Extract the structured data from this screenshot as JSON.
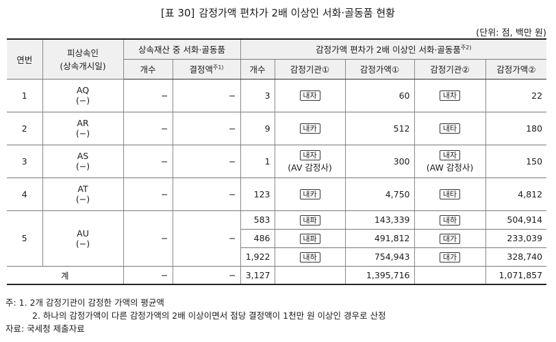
{
  "title": {
    "num": "[표 30]",
    "text": "감정가액 편차가 2배 이상인 서화·골동품 현황"
  },
  "unit": "(단위: 점, 백만 원)",
  "header": {
    "year": "연번",
    "decedent": "피상속인",
    "decedent_sub": "(상속개시일)",
    "group_a": "상속재산 중 서화·골동품",
    "group_b": "감정가액 편차가 2배 이상인 서화·골동품",
    "group_b_note": "주2)",
    "count": "개수",
    "decided": "결정액",
    "decided_note": "주1)",
    "count_b": "개수",
    "agency1": "감정기관①",
    "value1": "감정가액①",
    "agency2": "감정기관②",
    "value2": "감정가액②"
  },
  "rows": [
    {
      "no": "1",
      "name": "AQ",
      "date": "(−)",
      "cnt": "−",
      "dec": "−",
      "items": [
        {
          "n": "3",
          "a1": "내자",
          "a1s": "",
          "v1": "60",
          "a2": "내차",
          "a2s": "",
          "v2": "22"
        }
      ]
    },
    {
      "no": "2",
      "name": "AR",
      "date": "(−)",
      "cnt": "−",
      "dec": "−",
      "items": [
        {
          "n": "9",
          "a1": "내카",
          "a1s": "",
          "v1": "512",
          "a2": "내타",
          "a2s": "",
          "v2": "180"
        }
      ]
    },
    {
      "no": "3",
      "name": "AS",
      "date": "(−)",
      "cnt": "−",
      "dec": "−",
      "items": [
        {
          "n": "1",
          "a1": "내자",
          "a1s": "(AV 감정사)",
          "v1": "300",
          "a2": "내자",
          "a2s": "(AW 감정사)",
          "v2": "150"
        }
      ]
    },
    {
      "no": "4",
      "name": "AT",
      "date": "(−)",
      "cnt": "−",
      "dec": "−",
      "items": [
        {
          "n": "123",
          "a1": "내카",
          "a1s": "",
          "v1": "4,750",
          "a2": "내타",
          "a2s": "",
          "v2": "4,812"
        }
      ]
    },
    {
      "no": "5",
      "name": "AU",
      "date": "(−)",
      "cnt": "−",
      "dec": "−",
      "items": [
        {
          "n": "583",
          "a1": "내파",
          "a1s": "",
          "v1": "143,339",
          "a2": "내하",
          "a2s": "",
          "v2": "504,914"
        },
        {
          "n": "486",
          "a1": "내파",
          "a1s": "",
          "v1": "491,812",
          "a2": "대가",
          "a2s": "",
          "v2": "233,039"
        },
        {
          "n": "1,922",
          "a1": "내하",
          "a1s": "",
          "v1": "754,943",
          "a2": "대가",
          "a2s": "",
          "v2": "328,740"
        }
      ]
    }
  ],
  "total": {
    "label": "계",
    "cnt": "−",
    "dec": "−",
    "n": "3,127",
    "v1": "1,395,716",
    "v2": "1,071,857"
  },
  "notes": {
    "n1": "주: 1. 2개 감정기관이 감정한 가액의 평균액",
    "n2": "2. 하나의 감정가액이 다른 감정가액의 2배 이상이면서 점당 결정액이 1천만 원 이상인 경우로 산정",
    "source": "자료: 국세청 제출자료"
  }
}
